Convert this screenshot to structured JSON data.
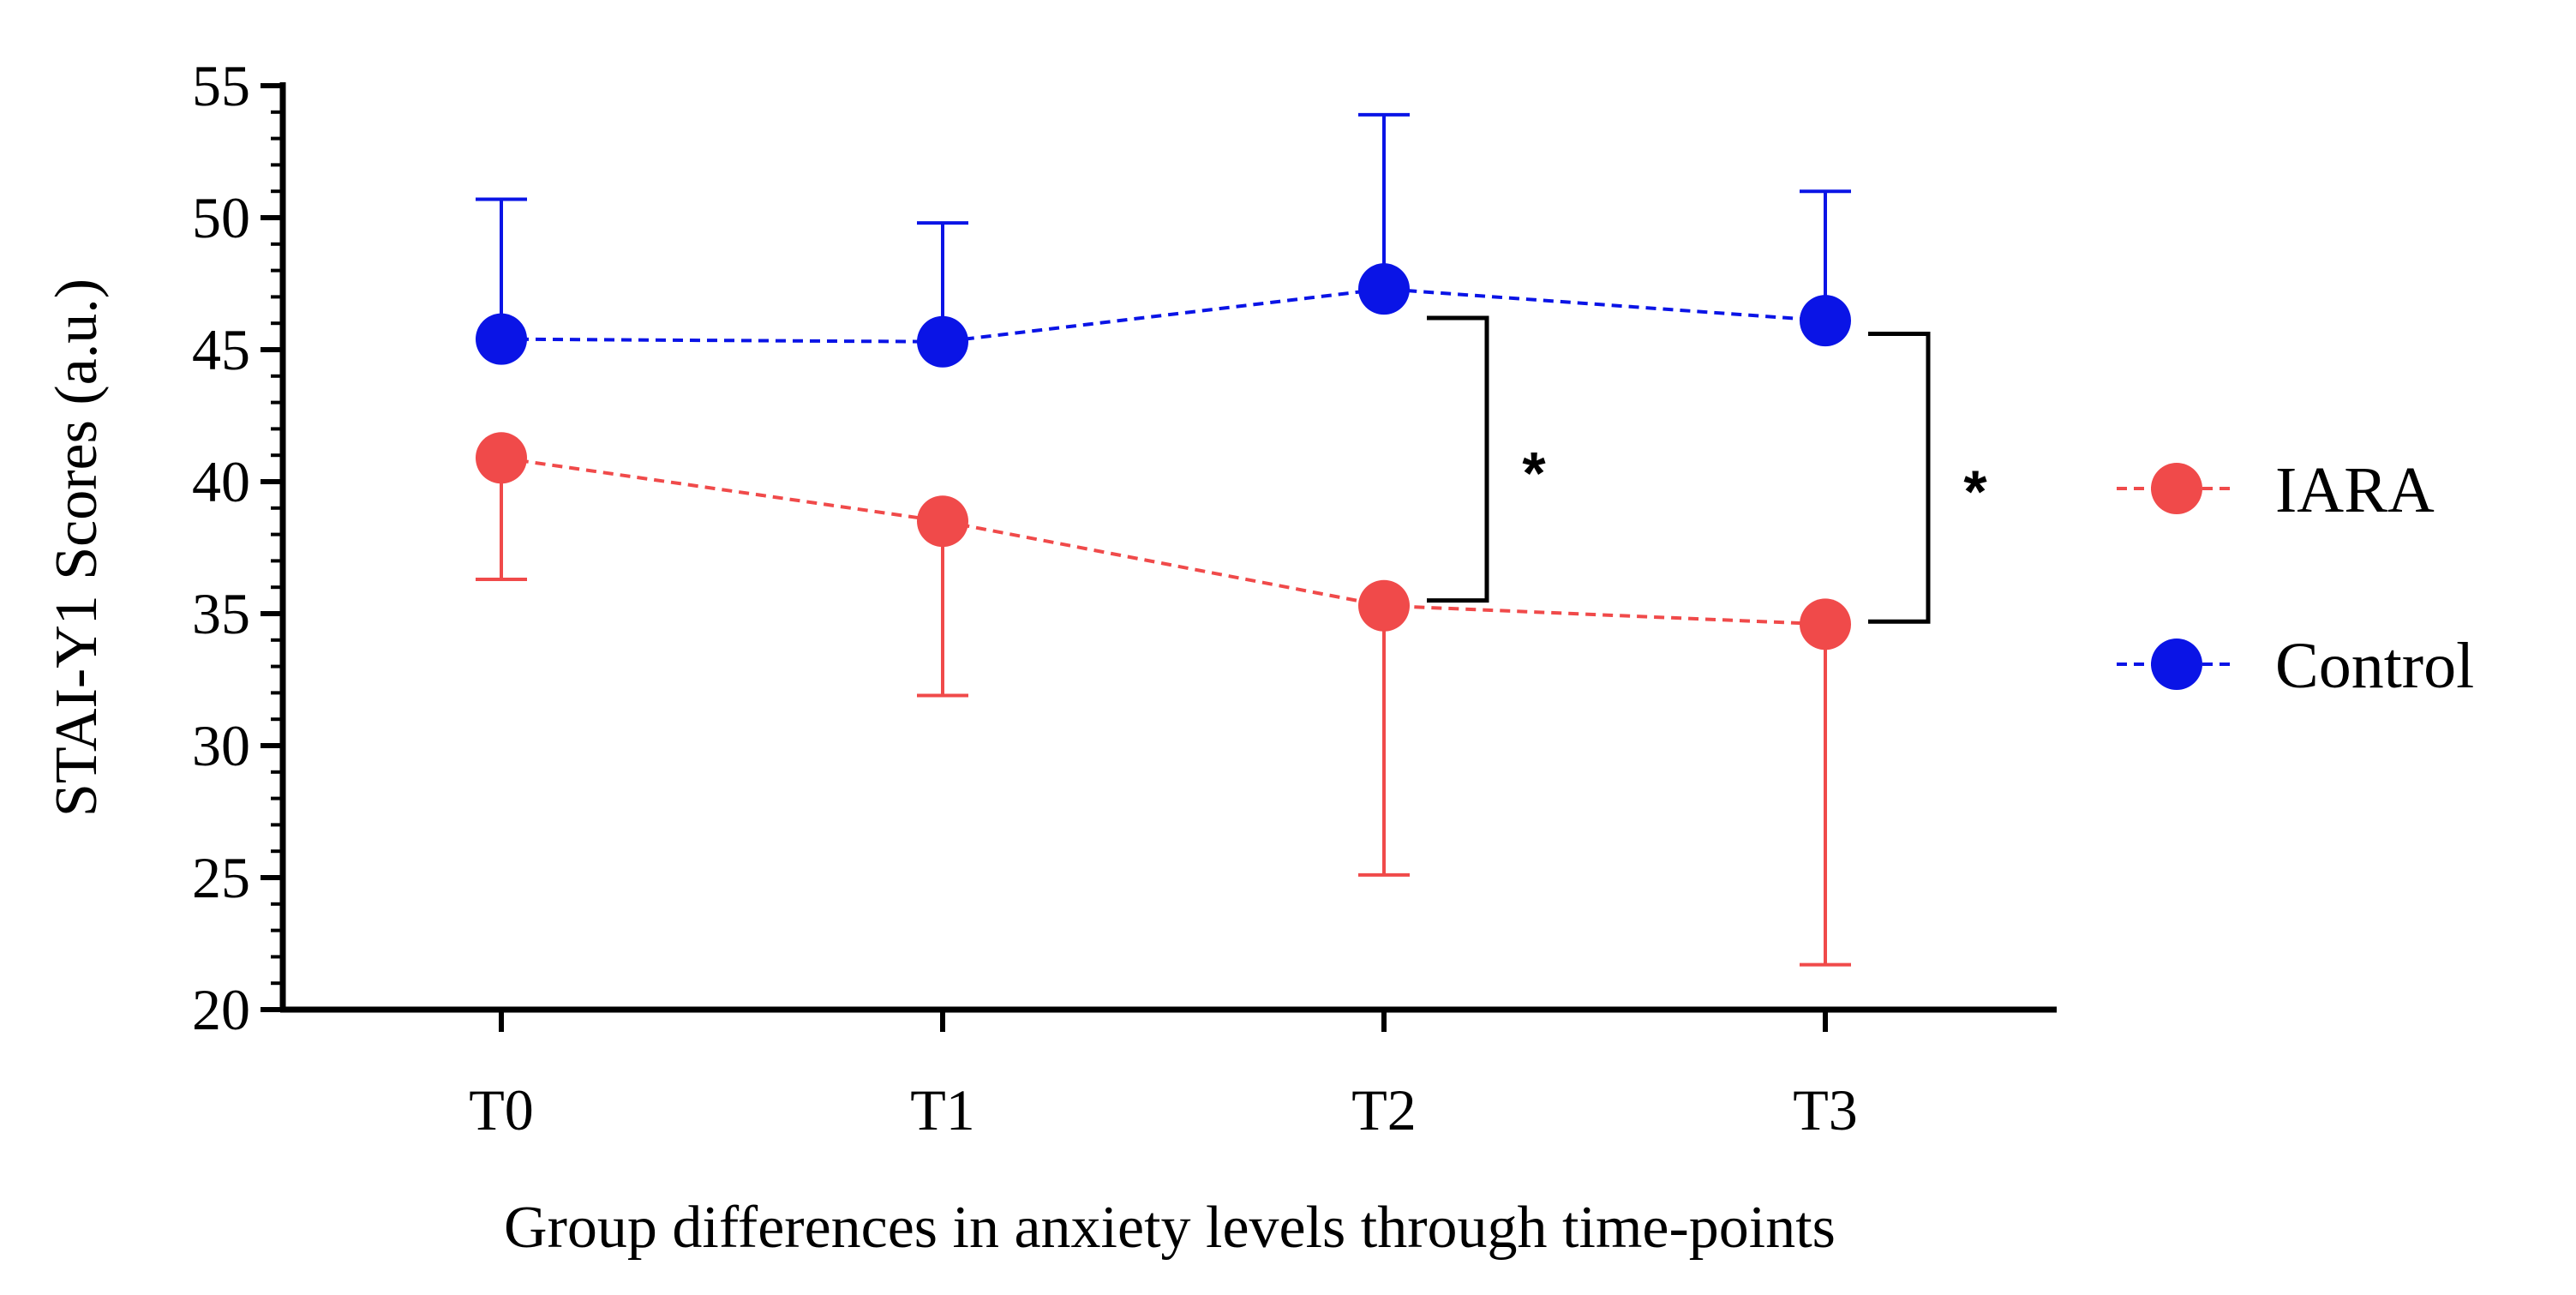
{
  "chart_data": {
    "type": "line",
    "title": "",
    "xlabel": "Group differences in anxiety levels through time-points",
    "ylabel": "STAI-Y1 Scores (a.u.)",
    "categories": [
      "T0",
      "T1",
      "T2",
      "T3"
    ],
    "ylim": [
      20,
      55
    ],
    "yticks": [
      20,
      25,
      30,
      35,
      40,
      45,
      50,
      55
    ],
    "y_tick_labels": [
      "20",
      "25",
      "30",
      "35",
      "40",
      "45",
      "50",
      "55"
    ],
    "grid": false,
    "legend_position": "right",
    "series": [
      {
        "name": "IARA",
        "color": "#f04a4a",
        "values": [
          40.9,
          38.5,
          35.3,
          34.6
        ],
        "error": [
          4.6,
          6.6,
          10.2,
          12.9
        ],
        "error_direction": "down"
      },
      {
        "name": "Control",
        "color": "#0a14e6",
        "values": [
          45.4,
          45.3,
          47.3,
          46.1
        ],
        "error": [
          5.3,
          4.5,
          6.6,
          4.9
        ],
        "error_direction": "up"
      }
    ],
    "annotations": [
      {
        "at": "T2",
        "label": "*",
        "from": 35.5,
        "to": 46.2
      },
      {
        "at": "T3",
        "label": "*",
        "from": 34.7,
        "to": 45.6
      }
    ]
  }
}
